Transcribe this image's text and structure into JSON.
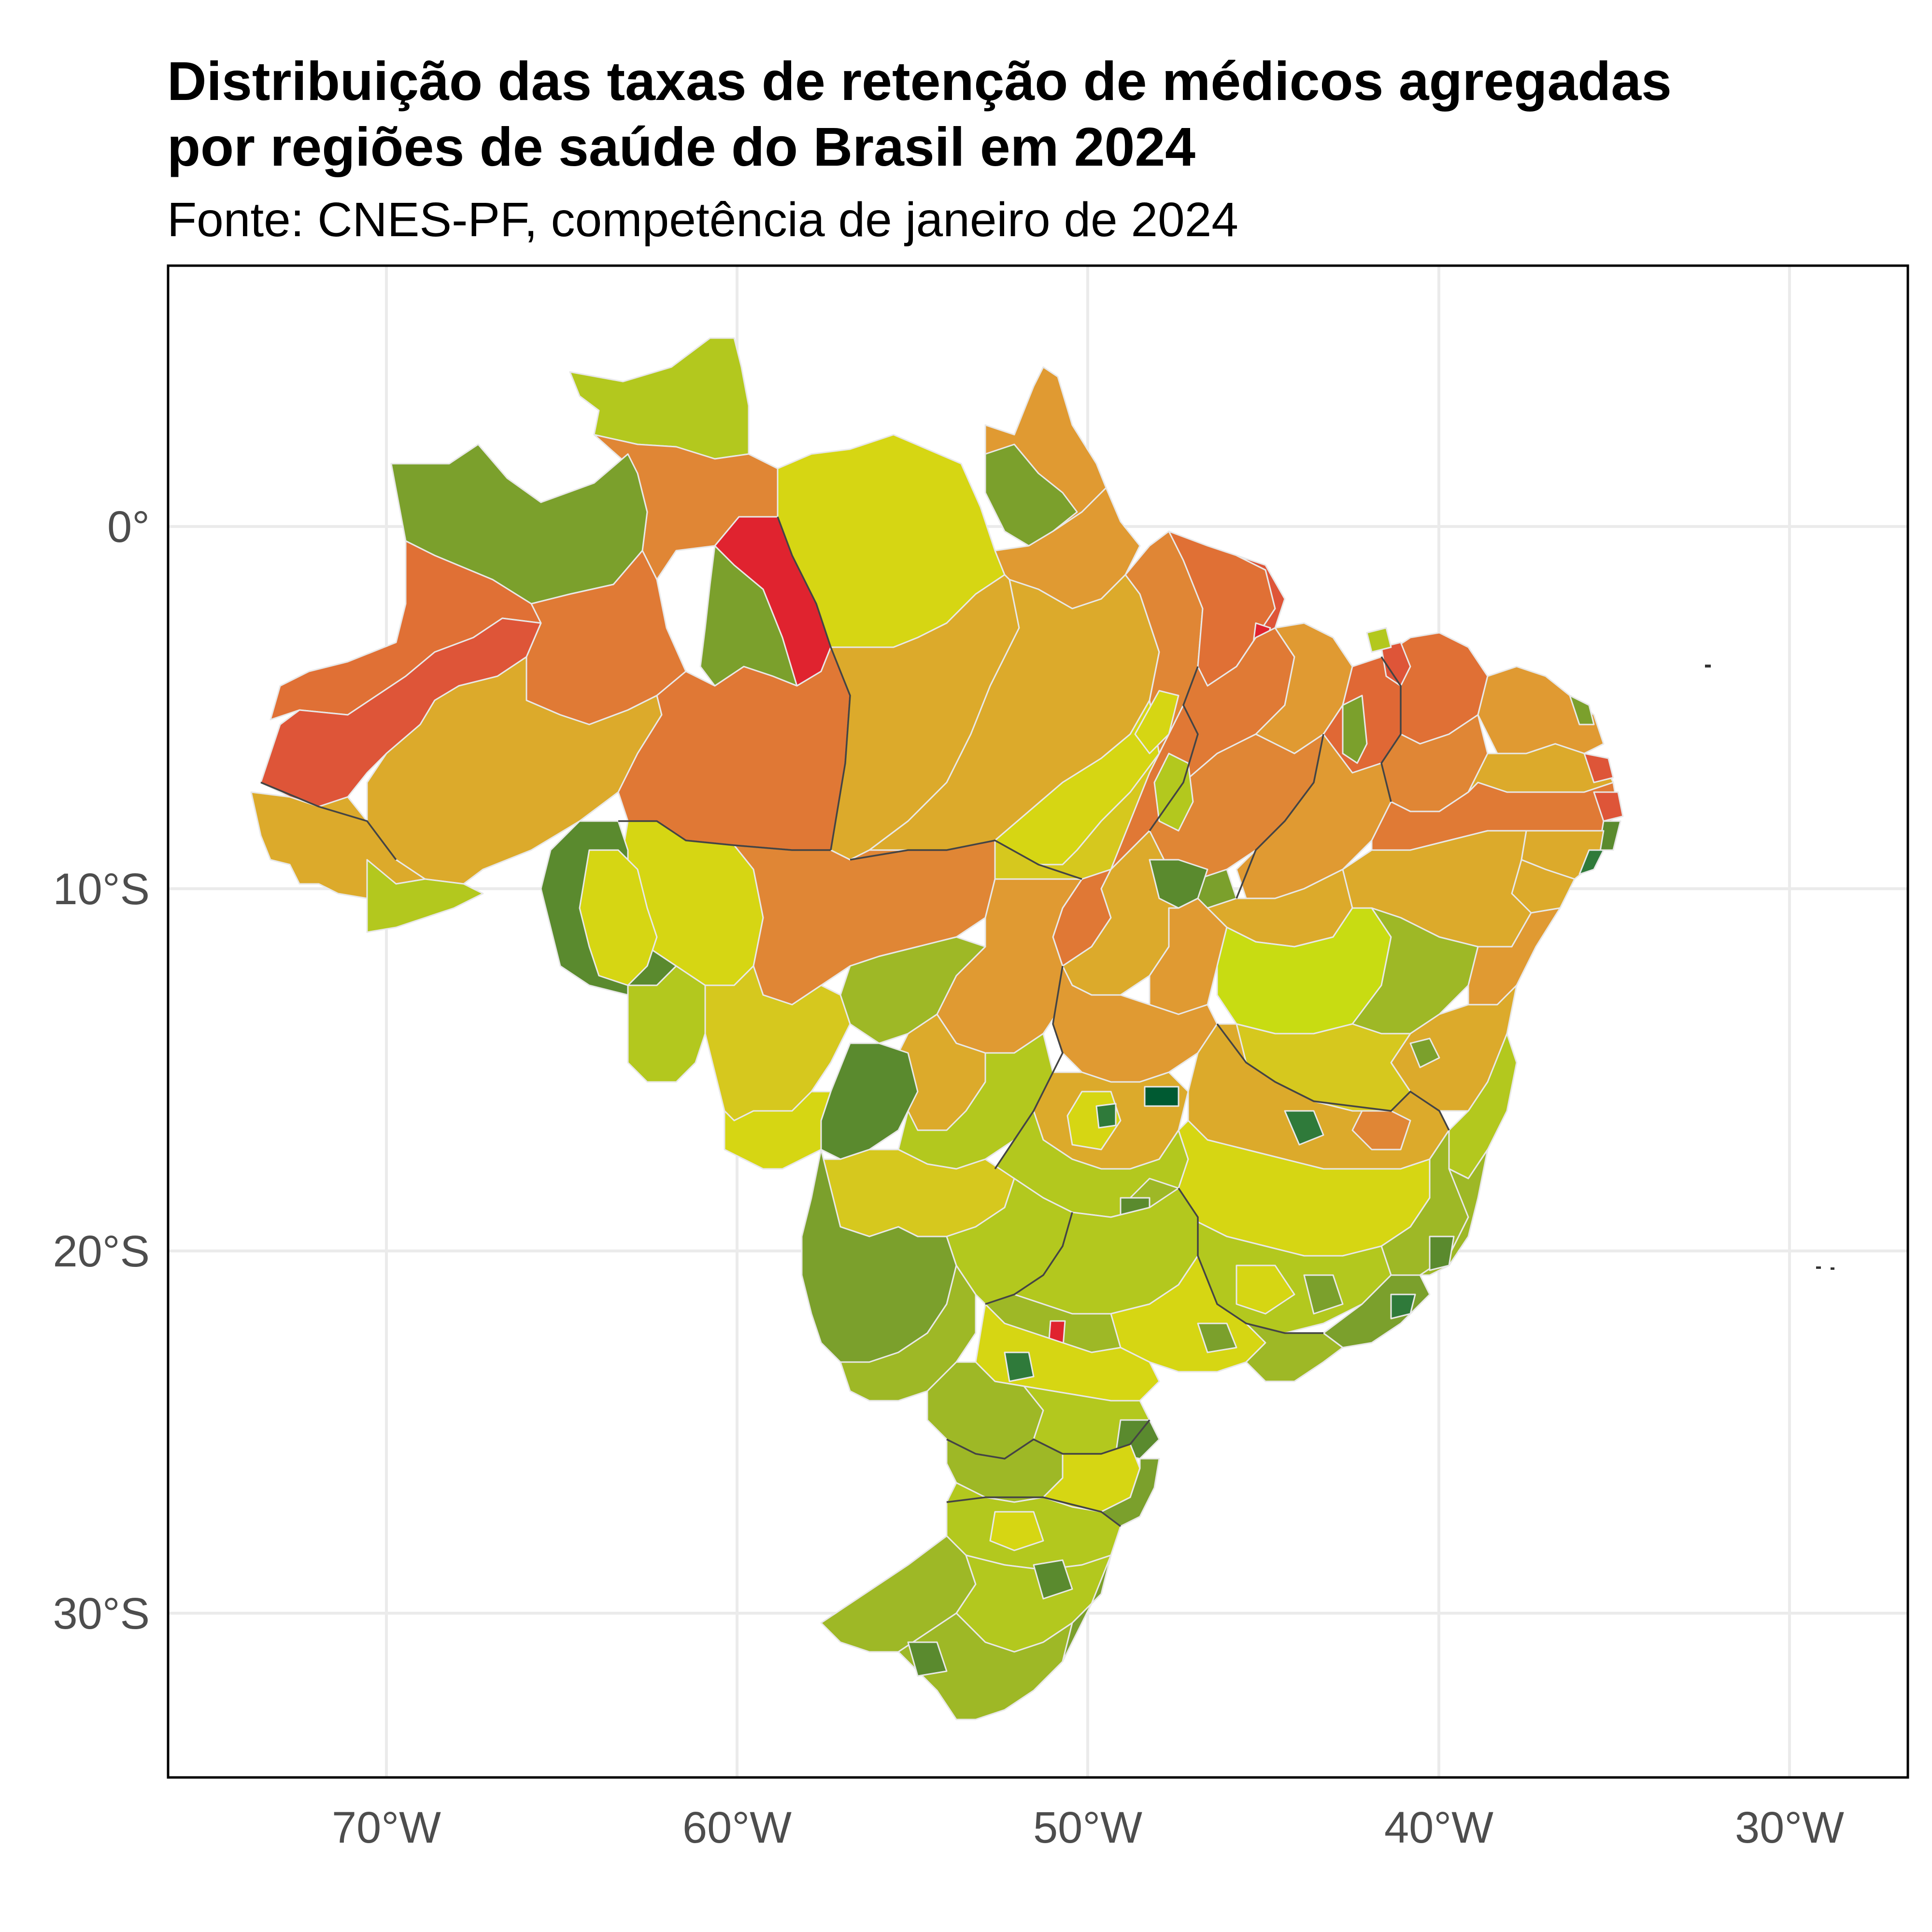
{
  "title_line1": "Distribuição das taxas de retenção de médicos agregadas",
  "title_line2": "por regiões de saúde do Brasil em 2024",
  "subtitle": "Fonte: CNES-PF, competência de janeiro de 2024",
  "x_ticks": [
    "70°W",
    "60°W",
    "50°W",
    "40°W",
    "30°W"
  ],
  "y_ticks": [
    "0°",
    "10°S",
    "20°S",
    "30°S"
  ],
  "colors": {
    "red": "#e0232f",
    "red_orange": "#de5538",
    "orange": "#e07a35",
    "light_orange": "#e09a32",
    "amber": "#ddb12c",
    "yellow": "#d6d613",
    "yellow_green": "#b3c81e",
    "light_green": "#9eb826",
    "green": "#7ba02c",
    "dark_green": "#5a8a2e",
    "deep_green": "#005a32"
  }
}
